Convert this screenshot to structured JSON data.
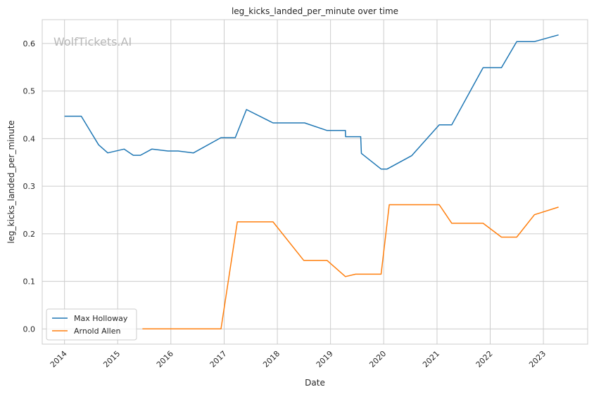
{
  "chart_data": {
    "type": "line",
    "title": "leg_kicks_landed_per_minute over time",
    "xlabel": "Date",
    "ylabel": "leg_kicks_landed_per_minute",
    "watermark": "WolfTickets.AI",
    "xlim": [
      "2013-08-01",
      "2023-11-01"
    ],
    "ylim": [
      -0.032,
      0.65
    ],
    "x_ticks": [
      "2014-01-01",
      "2015-01-01",
      "2016-01-01",
      "2017-01-01",
      "2018-01-01",
      "2019-01-01",
      "2020-01-01",
      "2021-01-01",
      "2022-01-01",
      "2023-01-01"
    ],
    "x_tick_labels": [
      "2014",
      "2015",
      "2016",
      "2017",
      "2018",
      "2019",
      "2020",
      "2021",
      "2022",
      "2023"
    ],
    "y_ticks": [
      0.0,
      0.1,
      0.2,
      0.3,
      0.4,
      0.5,
      0.6
    ],
    "y_tick_labels": [
      "0.0",
      "0.1",
      "0.2",
      "0.3",
      "0.4",
      "0.5",
      "0.6"
    ],
    "grid": true,
    "legend_position": "lower-left",
    "series": [
      {
        "name": "Max Holloway",
        "color": "#1f77b4",
        "x": [
          "2014-01-01",
          "2014-04-26",
          "2014-08-23",
          "2014-10-25",
          "2015-02-14",
          "2015-04-18",
          "2015-06-06",
          "2015-08-23",
          "2015-12-12",
          "2016-02-20",
          "2016-06-04",
          "2016-12-10",
          "2017-03-18",
          "2017-06-03",
          "2017-12-02",
          "2018-07-07",
          "2018-12-08",
          "2019-04-13",
          "2019-04-14",
          "2019-07-27",
          "2019-08-01",
          "2019-12-14",
          "2020-01-24",
          "2020-07-11",
          "2021-01-16",
          "2021-04-12",
          "2021-11-13",
          "2022-03-19",
          "2022-07-02",
          "2022-11-01",
          "2023-04-15"
        ],
        "y": [
          0.447,
          0.447,
          0.387,
          0.37,
          0.378,
          0.365,
          0.365,
          0.378,
          0.374,
          0.374,
          0.37,
          0.402,
          0.402,
          0.461,
          0.433,
          0.433,
          0.417,
          0.417,
          0.404,
          0.404,
          0.369,
          0.336,
          0.336,
          0.364,
          0.429,
          0.429,
          0.549,
          0.549,
          0.604,
          0.604,
          0.618
        ]
      },
      {
        "name": "Arnold Allen",
        "color": "#ff7f0e",
        "x": [
          "2015-06-20",
          "2016-01-01",
          "2016-06-01",
          "2016-12-10",
          "2017-04-01",
          "2017-08-01",
          "2017-12-02",
          "2018-07-01",
          "2018-12-08",
          "2019-04-13",
          "2019-06-22",
          "2019-12-14",
          "2020-02-08",
          "2021-01-16",
          "2021-04-12",
          "2021-11-13",
          "2022-03-19",
          "2022-07-02",
          "2022-11-01",
          "2023-04-15"
        ],
        "y": [
          0.0,
          0.0,
          0.0,
          0.0,
          0.225,
          0.225,
          0.225,
          0.144,
          0.144,
          0.11,
          0.115,
          0.115,
          0.261,
          0.261,
          0.222,
          0.222,
          0.193,
          0.193,
          0.24,
          0.256
        ]
      }
    ]
  }
}
